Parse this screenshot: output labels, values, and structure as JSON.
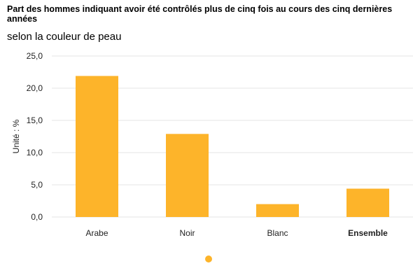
{
  "chart_data": {
    "type": "bar",
    "title": "Part des hommes indiquant avoir été contrôlés plus de cinq fois au cours des cinq dernières années",
    "subtitle": "selon la couleur de peau",
    "ylabel": "Unité : %",
    "categories": [
      "Arabe",
      "Noir",
      "Blanc",
      "Ensemble"
    ],
    "bold_categories": [
      "Ensemble"
    ],
    "values": [
      21.9,
      12.9,
      2.0,
      4.4
    ],
    "ylim": [
      0,
      25
    ],
    "yticks": [
      "0,0",
      "5,0",
      "10,0",
      "15,0",
      "20,0",
      "25,0"
    ],
    "grid": true,
    "legend": "bottom-center",
    "bar_color": "#FDB42A"
  }
}
